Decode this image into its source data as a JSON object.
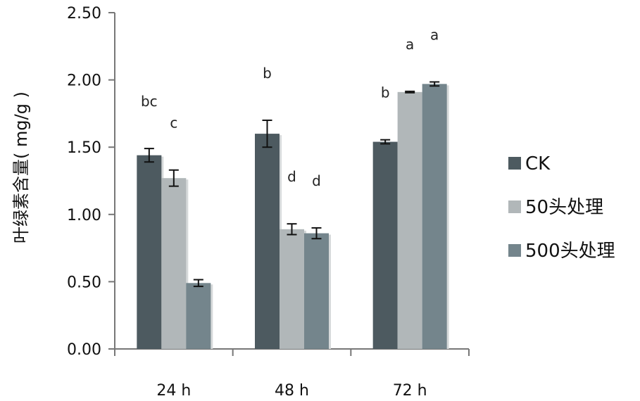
{
  "chart_data": {
    "type": "bar",
    "title": "",
    "xlabel": "",
    "ylabel": "叶绿素含量( mg/g )",
    "ylim": [
      0,
      2.5
    ],
    "yticks": [
      "0.00",
      "0.50",
      "1.00",
      "1.50",
      "2.00",
      "2.50"
    ],
    "categories": [
      "24 h",
      "48 h",
      "72 h"
    ],
    "series": [
      {
        "name": "CK",
        "color": "#4d5a60",
        "values": [
          1.44,
          1.6,
          1.54
        ],
        "errors": [
          0.05,
          0.1,
          0.015
        ],
        "sig": [
          "bc",
          "b",
          "b"
        ]
      },
      {
        "name": "50头处理",
        "color": "#b1b7b9",
        "values": [
          1.27,
          0.89,
          1.91
        ],
        "errors": [
          0.06,
          0.04,
          0.005
        ],
        "sig": [
          "c",
          "d",
          "a"
        ]
      },
      {
        "name": "500头处理",
        "color": "#74858c",
        "values": [
          0.49,
          0.86,
          1.97
        ],
        "errors": [
          0.025,
          0.04,
          0.015
        ],
        "sig": [
          "",
          "d",
          "a"
        ]
      }
    ],
    "legend_position": "right",
    "grid": false
  }
}
